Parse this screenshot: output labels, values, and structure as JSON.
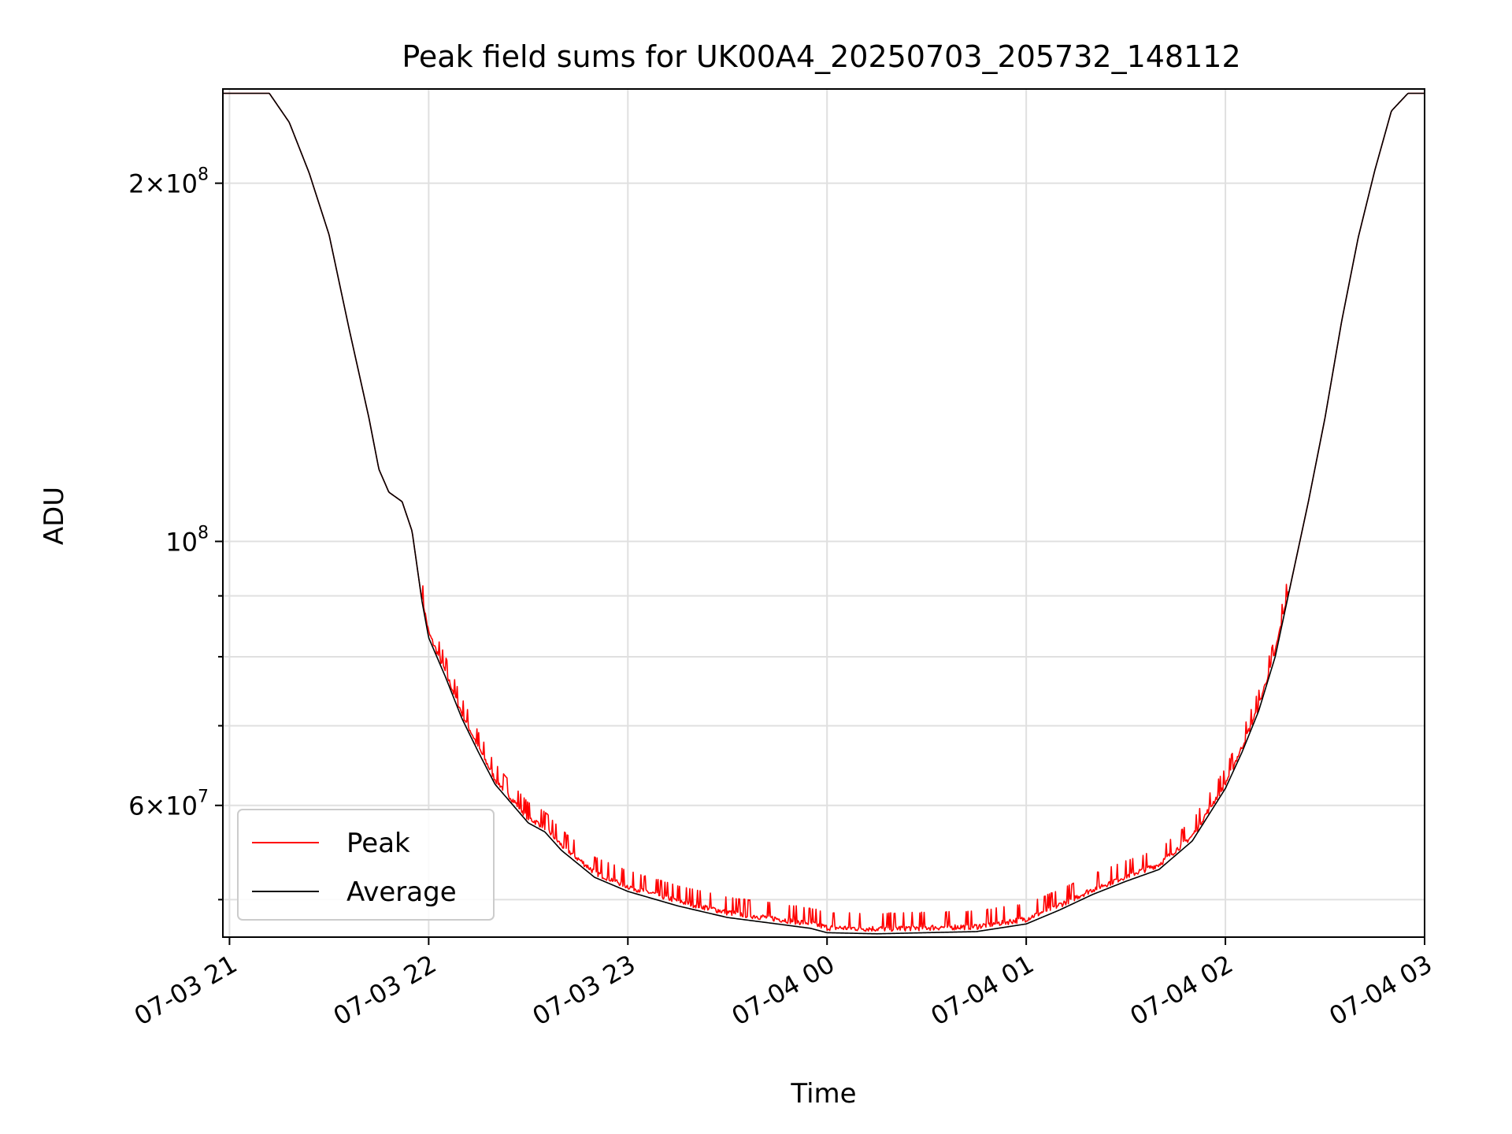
{
  "chart_data": {
    "type": "line",
    "title": "Peak field sums for UK00A4_20250703_205732_148112",
    "xlabel": "Time",
    "ylabel": "ADU",
    "y_scale": "log",
    "ylim": [
      46500000,
      240000000
    ],
    "x_range": [
      "2025-07-03 20:58",
      "2025-07-04 03:00"
    ],
    "x_ticks": [
      {
        "t": "2025-07-03 21:00",
        "label": "07-03 21"
      },
      {
        "t": "2025-07-03 22:00",
        "label": "07-03 22"
      },
      {
        "t": "2025-07-03 23:00",
        "label": "07-03 23"
      },
      {
        "t": "2025-07-04 00:00",
        "label": "07-04 00"
      },
      {
        "t": "2025-07-04 01:00",
        "label": "07-04 01"
      },
      {
        "t": "2025-07-04 02:00",
        "label": "07-04 02"
      },
      {
        "t": "2025-07-04 03:00",
        "label": "07-04 03"
      }
    ],
    "y_ticks_major": [
      {
        "value": 60000000,
        "mantissa": "6",
        "exp": "7"
      },
      {
        "value": 100000000,
        "mantissa": "",
        "exp": "8"
      },
      {
        "value": 200000000,
        "mantissa": "2",
        "exp": "8"
      }
    ],
    "y_ticks_minor": [
      50000000,
      70000000,
      80000000,
      90000000
    ],
    "grid": true,
    "legend_position": "lower-left",
    "series": [
      {
        "name": "Peak",
        "color": "#ff0000",
        "noise": true
      },
      {
        "name": "Average",
        "color": "#000000",
        "noise": false
      }
    ],
    "x": [
      "2025-07-03 20:58",
      "2025-07-03 21:04",
      "2025-07-03 21:08",
      "2025-07-03 21:12",
      "2025-07-03 21:18",
      "2025-07-03 21:24",
      "2025-07-03 21:30",
      "2025-07-03 21:36",
      "2025-07-03 21:42",
      "2025-07-03 21:45",
      "2025-07-03 21:48",
      "2025-07-03 21:52",
      "2025-07-03 21:55",
      "2025-07-03 21:58",
      "2025-07-03 22:00",
      "2025-07-03 22:05",
      "2025-07-03 22:10",
      "2025-07-03 22:15",
      "2025-07-03 22:20",
      "2025-07-03 22:30",
      "2025-07-03 22:35",
      "2025-07-03 22:40",
      "2025-07-03 22:50",
      "2025-07-03 23:00",
      "2025-07-03 23:15",
      "2025-07-03 23:30",
      "2025-07-03 23:45",
      "2025-07-03 23:55",
      "2025-07-04 00:00",
      "2025-07-04 00:15",
      "2025-07-04 00:30",
      "2025-07-04 00:45",
      "2025-07-04 01:00",
      "2025-07-04 01:10",
      "2025-07-04 01:20",
      "2025-07-04 01:30",
      "2025-07-04 01:40",
      "2025-07-04 01:50",
      "2025-07-04 02:00",
      "2025-07-04 02:05",
      "2025-07-04 02:10",
      "2025-07-04 02:15",
      "2025-07-04 02:20",
      "2025-07-04 02:25",
      "2025-07-04 02:30",
      "2025-07-04 02:35",
      "2025-07-04 02:40",
      "2025-07-04 02:45",
      "2025-07-04 02:50",
      "2025-07-04 02:55",
      "2025-07-04 03:00"
    ],
    "average": [
      238000000,
      238000000,
      238000000,
      238000000,
      225000000,
      204000000,
      181000000,
      151000000,
      127000000,
      115000000,
      110000000,
      108000000,
      102000000,
      89000000,
      83000000,
      77000000,
      71000000,
      66500000,
      62500000,
      58000000,
      57000000,
      55000000,
      52200000,
      50800000,
      49400000,
      48300000,
      47700000,
      47300000,
      46900000,
      46800000,
      46900000,
      47000000,
      47700000,
      49000000,
      50500000,
      51800000,
      53000000,
      56000000,
      62000000,
      66500000,
      72000000,
      80000000,
      93000000,
      108000000,
      127000000,
      153000000,
      180000000,
      205000000,
      230000000,
      238000000,
      238000000
    ]
  }
}
